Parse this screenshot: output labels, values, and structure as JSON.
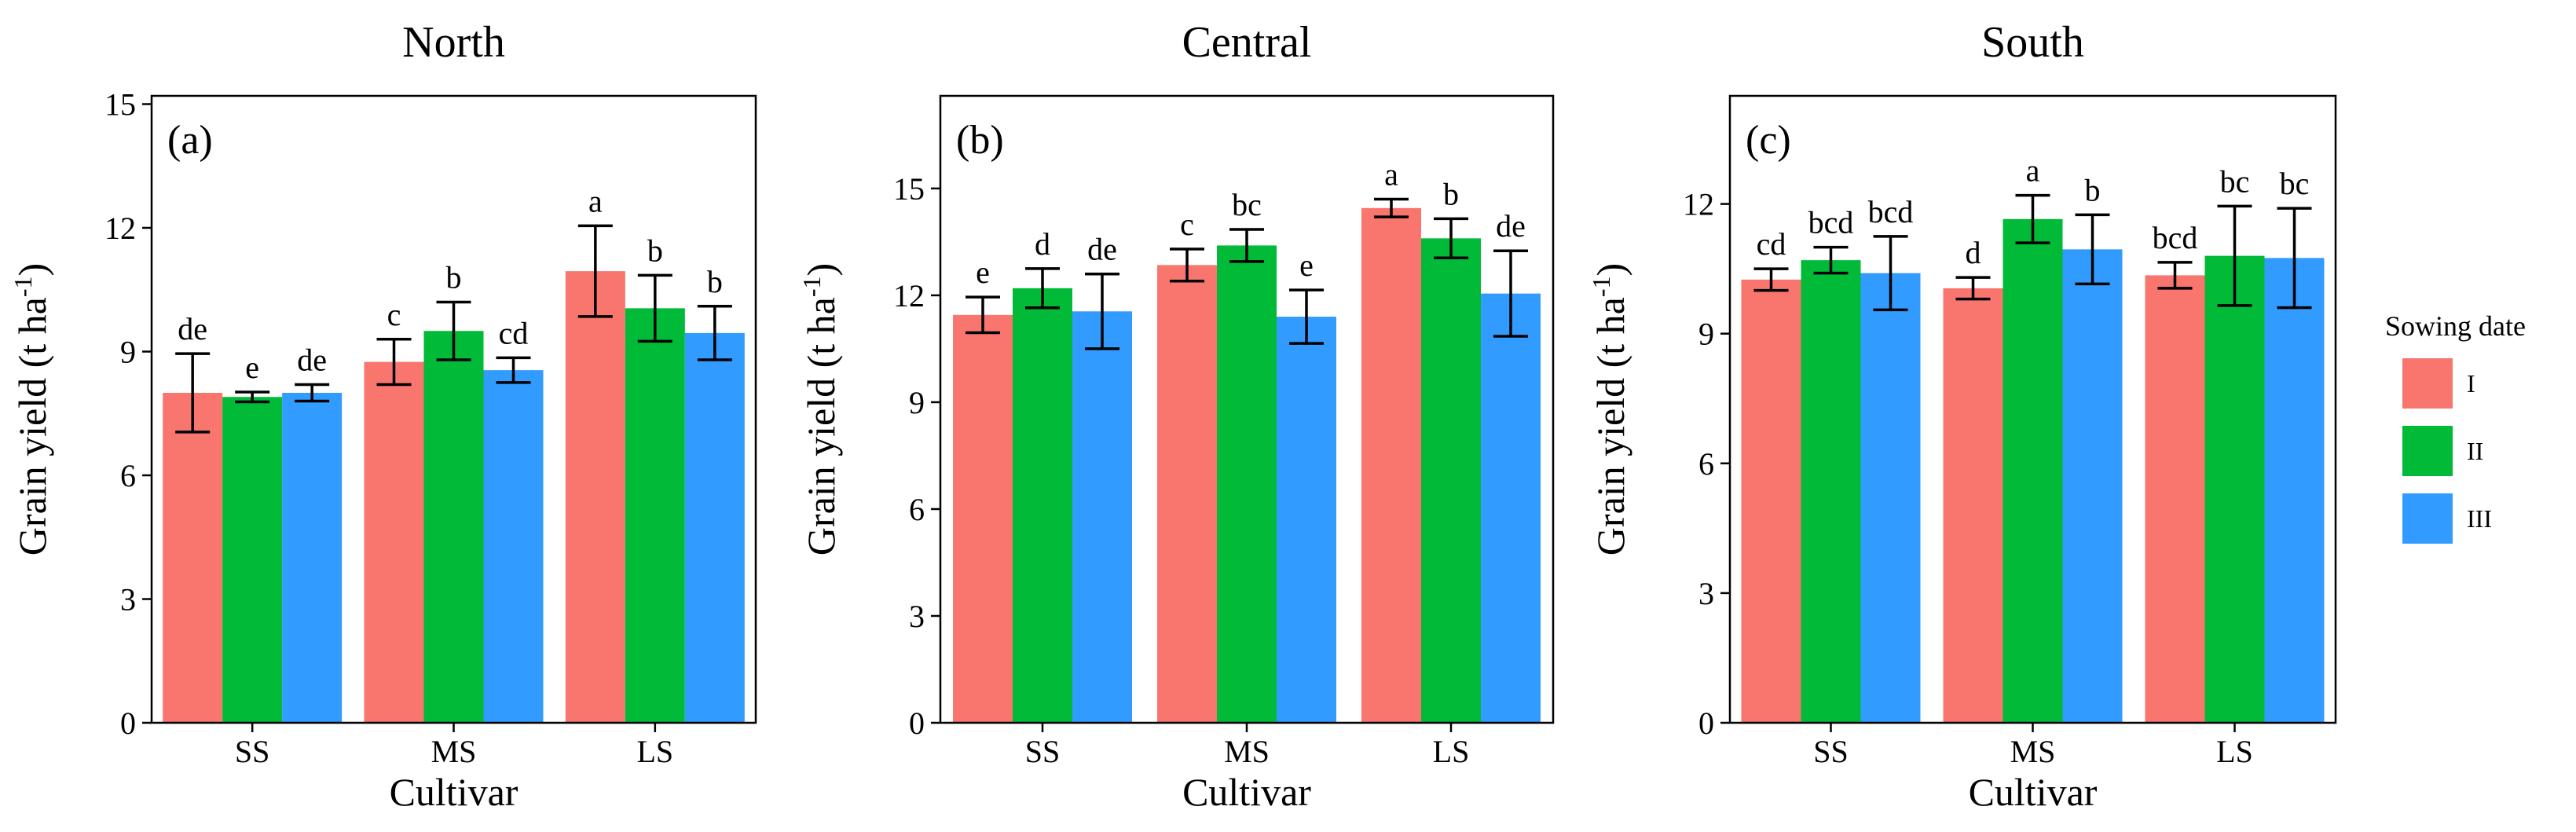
{
  "chart_data": [
    {
      "type": "bar",
      "title": "North",
      "panel_label": "(a)",
      "xlabel": "Cultivar",
      "ylabel": "Grain yield (t ha-1)",
      "ylim": [
        0,
        15.2
      ],
      "yticks": [
        0,
        3,
        6,
        9,
        12,
        15
      ],
      "categories": [
        "SS",
        "MS",
        "LS"
      ],
      "series": [
        {
          "name": "I",
          "values": [
            8.0,
            8.75,
            10.95
          ],
          "errors": [
            0.95,
            0.55,
            1.1
          ],
          "letters": [
            "de",
            "c",
            "a"
          ]
        },
        {
          "name": "II",
          "values": [
            7.9,
            9.5,
            10.05
          ],
          "errors": [
            0.12,
            0.7,
            0.8
          ],
          "letters": [
            "e",
            "b",
            "b"
          ]
        },
        {
          "name": "III",
          "values": [
            8.0,
            8.55,
            9.45
          ],
          "errors": [
            0.2,
            0.3,
            0.65
          ],
          "letters": [
            "de",
            "cd",
            "b"
          ]
        }
      ]
    },
    {
      "type": "bar",
      "title": "Central",
      "panel_label": "(b)",
      "xlabel": "Cultivar",
      "ylabel": "Grain yield (t ha-1)",
      "ylim": [
        0,
        17.6
      ],
      "yticks": [
        0,
        3,
        6,
        9,
        12,
        15
      ],
      "categories": [
        "SS",
        "MS",
        "LS"
      ],
      "series": [
        {
          "name": "I",
          "values": [
            11.45,
            12.85,
            14.45
          ],
          "errors": [
            0.5,
            0.45,
            0.25
          ],
          "letters": [
            "e",
            "c",
            "a"
          ]
        },
        {
          "name": "II",
          "values": [
            12.2,
            13.4,
            13.6
          ],
          "errors": [
            0.55,
            0.45,
            0.55
          ],
          "letters": [
            "d",
            "bc",
            "b"
          ]
        },
        {
          "name": "III",
          "values": [
            11.55,
            11.4,
            12.05
          ],
          "errors": [
            1.05,
            0.75,
            1.2
          ],
          "letters": [
            "de",
            "e",
            "de"
          ]
        }
      ]
    },
    {
      "type": "bar",
      "title": "South",
      "panel_label": "(c)",
      "xlabel": "Cultivar",
      "ylabel": "Grain yield (t ha-1)",
      "ylim": [
        0,
        14.5
      ],
      "yticks": [
        0,
        3,
        6,
        9,
        12
      ],
      "categories": [
        "SS",
        "MS",
        "LS"
      ],
      "series": [
        {
          "name": "I",
          "values": [
            10.25,
            10.05,
            10.35
          ],
          "errors": [
            0.25,
            0.25,
            0.3
          ],
          "letters": [
            "cd",
            "d",
            "bcd"
          ]
        },
        {
          "name": "II",
          "values": [
            10.7,
            11.65,
            10.8
          ],
          "errors": [
            0.3,
            0.55,
            1.15
          ],
          "letters": [
            "bcd",
            "a",
            "bc"
          ]
        },
        {
          "name": "III",
          "values": [
            10.4,
            10.95,
            10.75
          ],
          "errors": [
            0.85,
            0.8,
            1.15
          ],
          "letters": [
            "bcd",
            "b",
            "bc"
          ]
        }
      ]
    }
  ],
  "legend": {
    "title": "Sowing date",
    "items": [
      {
        "label": "I",
        "color": "#F8766D"
      },
      {
        "label": "II",
        "color": "#00BA38"
      },
      {
        "label": "III",
        "color": "#319BFF"
      }
    ]
  }
}
